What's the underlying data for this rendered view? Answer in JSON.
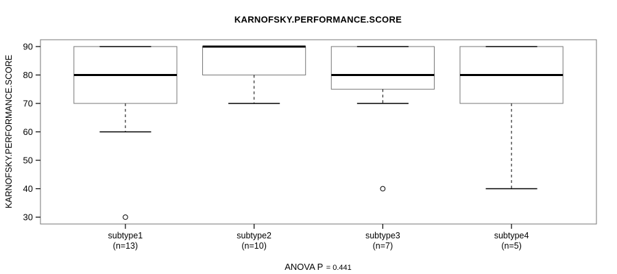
{
  "chart_data": {
    "type": "boxplot",
    "title": "KARNOFSKY.PERFORMANCE.SCORE",
    "ylabel": "KARNOFSKY.PERFORMANCE.SCORE",
    "xlabel": "",
    "ylim": [
      27.6,
      92.4
    ],
    "xlim": [
      0.34,
      4.66
    ],
    "yticks": [
      30,
      40,
      50,
      60,
      70,
      80,
      90
    ],
    "grid": false,
    "annotation": {
      "label": "ANOVA P",
      "value": "= 0.441",
      "p_value": 0.441
    },
    "groups": [
      {
        "label": "subtype1",
        "n_label": "(n=13)",
        "n": 13,
        "q1": 70,
        "median": 80,
        "q3": 90,
        "whisker_low": 60,
        "whisker_high": 90,
        "outliers": [
          30
        ]
      },
      {
        "label": "subtype2",
        "n_label": "(n=10)",
        "n": 10,
        "q1": 80,
        "median": 90,
        "q3": 90,
        "whisker_low": 70,
        "whisker_high": 90,
        "outliers": []
      },
      {
        "label": "subtype3",
        "n_label": "(n=7)",
        "n": 7,
        "q1": 75,
        "median": 80,
        "q3": 90,
        "whisker_low": 70,
        "whisker_high": 90,
        "outliers": [
          40
        ]
      },
      {
        "label": "subtype4",
        "n_label": "(n=5)",
        "n": 5,
        "q1": 70,
        "median": 80,
        "q3": 90,
        "whisker_low": 40,
        "whisker_high": 90,
        "outliers": []
      }
    ],
    "colors": {
      "frame": "#757575",
      "box_border": "#757575",
      "box_fill": "#ffffff",
      "line": "#000000",
      "text": "#000000",
      "background": "#ffffff"
    }
  }
}
